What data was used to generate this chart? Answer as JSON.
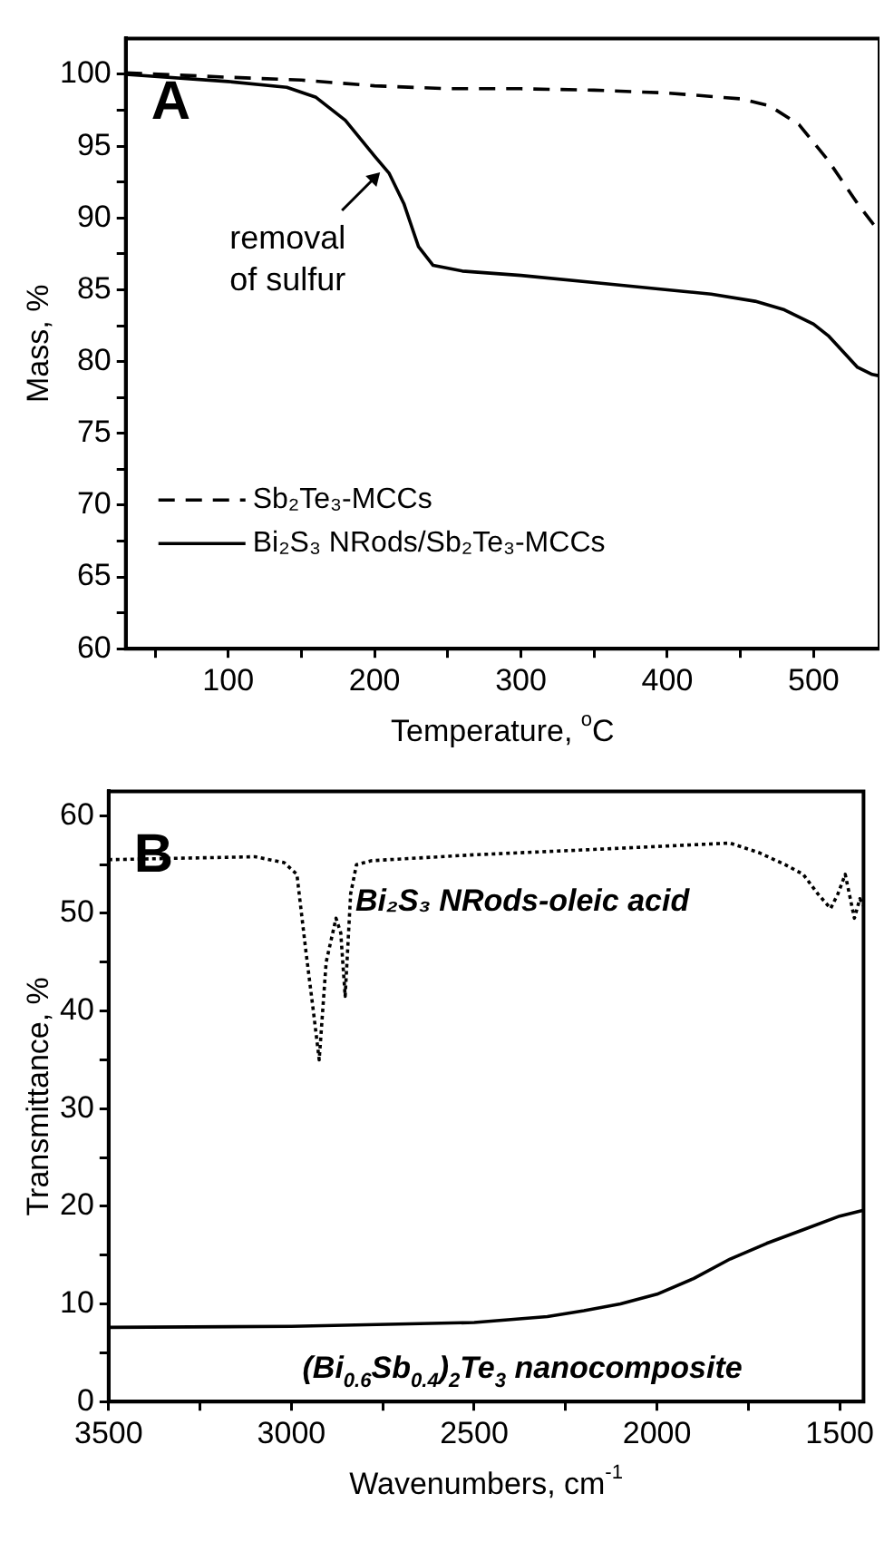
{
  "chart_data": [
    {
      "type": "line",
      "xlabel": "Temperature, $^{o}$C",
      "ylabel": "Mass, %",
      "annotations": [
        "A",
        {
          "text": "removal of sulfur",
          "x": 205,
          "y": 93.3
        }
      ],
      "legend": "bottom left",
      "xlim": [
        30,
        545
      ],
      "xticks": [
        {
          "value": 50,
          "label": null
        },
        100,
        {
          "value": 150,
          "label": null
        },
        200,
        {
          "value": 250,
          "label": null
        },
        300,
        {
          "value": 350,
          "label": null
        },
        400,
        {
          "value": 450,
          "label": null
        },
        500
      ],
      "ylim": [
        60,
        102.5
      ],
      "yticks": [
        60,
        {
          "value": 62.5,
          "label": null
        },
        65,
        {
          "value": 67.5,
          "label": null
        },
        70,
        {
          "value": 72.5,
          "label": null
        },
        75,
        {
          "value": 77.5,
          "label": null
        },
        80,
        {
          "value": 82.5,
          "label": null
        },
        85,
        {
          "value": 87.5,
          "label": null
        },
        90,
        {
          "value": 92.5,
          "label": null
        },
        95,
        {
          "value": 97.5,
          "label": null
        },
        100
      ],
      "series": [
        {
          "name": "Sb₂Te₃-MCCs",
          "color": "#000000",
          "line_style": "dashed",
          "x": [
            30,
            100,
            150,
            200,
            250,
            300,
            350,
            400,
            450,
            470,
            490,
            510,
            530,
            545
          ],
          "values": [
            100.1,
            99.8,
            99.6,
            99.2,
            99.0,
            99.0,
            98.9,
            98.7,
            98.3,
            97.8,
            96.5,
            94.0,
            91.0,
            89.0
          ]
        },
        {
          "name": "Bi₂S₃ NRods/Sb₂Te₃-MCCs",
          "color": "#000000",
          "line_style": "solid",
          "x": [
            30,
            100,
            140,
            160,
            180,
            200,
            210,
            220,
            230,
            240,
            260,
            300,
            350,
            400,
            430,
            460,
            480,
            500,
            510,
            520,
            530,
            540,
            545
          ],
          "values": [
            100.0,
            99.5,
            99.1,
            98.4,
            96.8,
            94.3,
            93.1,
            91.0,
            88.0,
            86.7,
            86.3,
            86.0,
            85.5,
            85.0,
            84.7,
            84.2,
            83.6,
            82.6,
            81.8,
            80.7,
            79.6,
            79.1,
            79.0
          ]
        }
      ]
    },
    {
      "type": "line",
      "xlabel": "Wavenumbers, cm$^{-1}$",
      "ylabel": "Transmittance, %",
      "annotations": [
        "B"
      ],
      "xlim": [
        3500,
        1435
      ],
      "xticks": [
        3500,
        {
          "value": 3250,
          "label": null
        },
        3000,
        {
          "value": 2750,
          "label": null
        },
        2500,
        {
          "value": 2250,
          "label": null
        },
        2000,
        {
          "value": 1750,
          "label": null
        },
        1500
      ],
      "ylim": [
        0,
        62.5
      ],
      "yticks": [
        0,
        {
          "value": 5,
          "label": null
        },
        10,
        {
          "value": 15,
          "label": null
        },
        20,
        {
          "value": 25,
          "label": null
        },
        30,
        {
          "value": 35,
          "label": null
        },
        40,
        {
          "value": 45,
          "label": null
        },
        50,
        {
          "value": 55,
          "label": null
        },
        60
      ],
      "series": [
        {
          "name": "Bi₂S₃ NRods-oleic acid",
          "color": "#000000",
          "line_style": "dotted",
          "x": [
            3500,
            3100,
            3020,
            2985,
            2960,
            2940,
            2924,
            2905,
            2878,
            2865,
            2853,
            2838,
            2822,
            2780,
            2500,
            2200,
            1800,
            1720,
            1650,
            1600,
            1560,
            1525,
            1505,
            1485,
            1460,
            1445,
            1435
          ],
          "values": [
            55.5,
            55.8,
            55.2,
            54.0,
            46.0,
            40.0,
            35.0,
            45.0,
            49.5,
            48.0,
            41.5,
            52.0,
            55.0,
            55.4,
            56.0,
            56.5,
            57.2,
            56.2,
            55.0,
            54.0,
            52.0,
            50.5,
            52.0,
            54.0,
            49.5,
            51.5,
            50.8
          ]
        },
        {
          "name": "(Bi$_{0.6}$Sb$_{0.4}$)$_{2}$Te$_{3}$ nanocomposite",
          "color": "#000000",
          "line_style": "solid",
          "x": [
            3500,
            3000,
            2500,
            2300,
            2200,
            2100,
            2000,
            1900,
            1800,
            1700,
            1600,
            1500,
            1435
          ],
          "values": [
            7.6,
            7.7,
            8.1,
            8.7,
            9.3,
            10.0,
            11.0,
            12.6,
            14.6,
            16.2,
            17.6,
            19.0,
            19.6
          ]
        }
      ]
    }
  ]
}
